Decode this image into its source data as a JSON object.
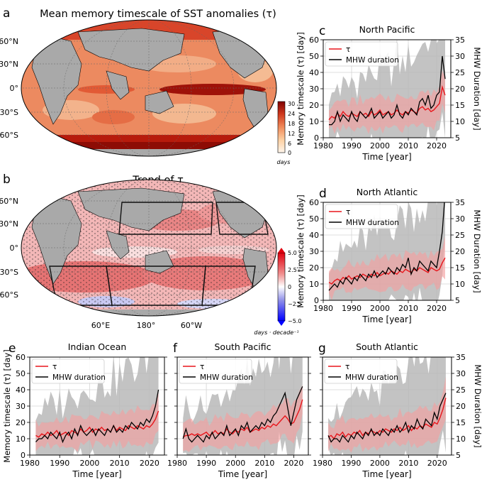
{
  "colors": {
    "tau": "#e8151b",
    "tau_band": "#f2a0a0",
    "mhw": "#000000",
    "mhw_band": "#b8b8b8",
    "land": "#a9a9a9",
    "ocean_warm": "#e8734a",
    "ocean_dark": "#9b1208",
    "ocean_light": "#f6c9a6",
    "trend_pos": "#e25656",
    "trend_light": "#f4c2c2",
    "trend_neg": "#8f8fe8"
  },
  "maps": {
    "a": {
      "letter": "a",
      "title": "Mean memory timescale of SST anomalies (τ)",
      "lat_labels": [
        "60°N",
        "30°N",
        "0°",
        "30°S",
        "60°S"
      ],
      "colorbar": {
        "ticks": [
          "30",
          "24",
          "18",
          "12",
          "6",
          "0"
        ],
        "unit": "days"
      }
    },
    "b": {
      "letter": "b",
      "title": "Trend of τ",
      "lat_labels": [
        "60°N",
        "30°N",
        "0°",
        "30°S",
        "60°S"
      ],
      "lon_labels": [
        "60°E",
        "180°",
        "60°W"
      ],
      "colorbar": {
        "ticks": [
          "5.0",
          "2.5",
          "0",
          "−2.5",
          "−5.0"
        ],
        "unit": "days · decade⁻¹"
      }
    }
  },
  "legend": {
    "tau": "τ",
    "mhw": "MHW duration"
  },
  "chart_data": [
    {
      "id": "c",
      "letter": "c",
      "type": "line",
      "title": "North Pacific",
      "xlabel": "Time [year]",
      "ylabel_left": "Memory timescale (τ) [day]",
      "ylabel_right": "MHW Duration [day]",
      "xlim": [
        1980,
        2025
      ],
      "ylim_left": [
        0,
        60
      ],
      "ylim_right": [
        5,
        35
      ],
      "xticks": [
        1980,
        1990,
        2000,
        2010,
        2020
      ],
      "yticks_left": [
        0,
        10,
        20,
        30,
        40,
        50,
        60
      ],
      "yticks_right": [
        5,
        10,
        15,
        20,
        25,
        30,
        35
      ],
      "x": [
        1982,
        1983,
        1984,
        1985,
        1986,
        1987,
        1988,
        1989,
        1990,
        1991,
        1992,
        1993,
        1994,
        1995,
        1996,
        1997,
        1998,
        1999,
        2000,
        2001,
        2002,
        2003,
        2004,
        2005,
        2006,
        2007,
        2008,
        2009,
        2010,
        2011,
        2012,
        2013,
        2014,
        2015,
        2016,
        2017,
        2018,
        2019,
        2020,
        2021,
        2022,
        2023
      ],
      "series": [
        {
          "name": "τ",
          "axis": "left",
          "values": [
            11,
            13,
            12,
            15,
            13,
            16,
            14,
            13,
            15,
            14,
            13,
            16,
            14,
            15,
            13,
            16,
            14,
            15,
            17,
            14,
            15,
            16,
            14,
            15,
            17,
            15,
            14,
            16,
            15,
            17,
            16,
            15,
            18,
            19,
            17,
            18,
            16,
            17,
            19,
            21,
            31,
            26
          ]
        },
        {
          "name": "MHW duration",
          "axis": "right",
          "values": [
            9,
            9,
            10,
            13,
            10,
            12,
            11,
            10,
            13,
            11,
            10,
            13,
            12,
            11,
            12,
            14,
            11,
            12,
            13,
            11,
            12,
            13,
            11,
            12,
            15,
            12,
            11,
            13,
            12,
            14,
            13,
            12,
            16,
            17,
            15,
            18,
            14,
            15,
            18,
            19,
            30,
            23
          ]
        }
      ]
    },
    {
      "id": "d",
      "letter": "d",
      "type": "line",
      "title": "North Atlantic",
      "xlabel": "Time [year]",
      "ylabel_left": "Memory timescale (τ) [day]",
      "ylabel_right": "MHW Duration [day]",
      "xlim": [
        1980,
        2025
      ],
      "ylim_left": [
        0,
        60
      ],
      "ylim_right": [
        5,
        35
      ],
      "xticks": [
        1980,
        1990,
        2000,
        2010,
        2020
      ],
      "yticks_left": [
        0,
        10,
        20,
        30,
        40,
        50,
        60
      ],
      "yticks_right": [
        5,
        10,
        15,
        20,
        25,
        30,
        35
      ],
      "x": [
        1982,
        1983,
        1984,
        1985,
        1986,
        1987,
        1988,
        1989,
        1990,
        1991,
        1992,
        1993,
        1994,
        1995,
        1996,
        1997,
        1998,
        1999,
        2000,
        2001,
        2002,
        2003,
        2004,
        2005,
        2006,
        2007,
        2008,
        2009,
        2010,
        2011,
        2012,
        2013,
        2014,
        2015,
        2016,
        2017,
        2018,
        2019,
        2020,
        2021,
        2022,
        2023
      ],
      "series": [
        {
          "name": "τ",
          "axis": "left",
          "values": [
            11,
            10,
            12,
            13,
            12,
            14,
            13,
            15,
            13,
            14,
            15,
            14,
            16,
            15,
            14,
            16,
            15,
            17,
            15,
            16,
            17,
            16,
            18,
            17,
            16,
            18,
            17,
            19,
            18,
            17,
            19,
            18,
            20,
            19,
            18,
            17,
            20,
            19,
            18,
            19,
            23,
            26
          ]
        },
        {
          "name": "MHW duration",
          "axis": "right",
          "values": [
            8,
            9,
            10,
            9,
            11,
            10,
            12,
            11,
            10,
            12,
            11,
            13,
            12,
            11,
            13,
            12,
            14,
            12,
            13,
            14,
            13,
            15,
            14,
            13,
            15,
            14,
            16,
            15,
            18,
            13,
            15,
            14,
            17,
            16,
            15,
            14,
            17,
            16,
            15,
            20,
            26,
            38
          ]
        }
      ]
    },
    {
      "id": "e",
      "letter": "e",
      "type": "line",
      "title": "Indian Ocean",
      "xlabel": "Time [year]",
      "ylabel_left": "Memory timescale (τ) [day]",
      "ylabel_right": "",
      "xlim": [
        1980,
        2025
      ],
      "ylim_left": [
        0,
        60
      ],
      "ylim_right": [
        5,
        35
      ],
      "xticks": [
        1980,
        1990,
        2000,
        2010,
        2020
      ],
      "yticks_left": [
        0,
        10,
        20,
        30,
        40,
        50,
        60
      ],
      "yticks_right": [],
      "x": [
        1982,
        1983,
        1984,
        1985,
        1986,
        1987,
        1988,
        1989,
        1990,
        1991,
        1992,
        1993,
        1994,
        1995,
        1996,
        1997,
        1998,
        1999,
        2000,
        2001,
        2002,
        2003,
        2004,
        2005,
        2006,
        2007,
        2008,
        2009,
        2010,
        2011,
        2012,
        2013,
        2014,
        2015,
        2016,
        2017,
        2018,
        2019,
        2020,
        2021,
        2022,
        2023
      ],
      "series": [
        {
          "name": "τ",
          "axis": "left",
          "values": [
            12,
            11,
            13,
            12,
            14,
            12,
            13,
            15,
            12,
            13,
            14,
            12,
            15,
            14,
            13,
            16,
            14,
            15,
            17,
            14,
            16,
            15,
            17,
            15,
            16,
            14,
            18,
            15,
            17,
            16,
            15,
            18,
            17,
            16,
            18,
            17,
            16,
            18,
            17,
            19,
            22,
            27
          ]
        },
        {
          "name": "MHW duration",
          "axis": "right",
          "values": [
            9,
            10,
            10,
            11,
            10,
            12,
            11,
            10,
            12,
            9,
            11,
            12,
            10,
            13,
            11,
            14,
            12,
            11,
            12,
            13,
            11,
            13,
            12,
            11,
            13,
            12,
            14,
            12,
            13,
            12,
            14,
            13,
            15,
            14,
            13,
            15,
            14,
            16,
            15,
            17,
            20,
            25
          ]
        }
      ]
    },
    {
      "id": "f",
      "letter": "f",
      "type": "line",
      "title": "South Pacific",
      "xlabel": "Time [year]",
      "ylabel_left": "",
      "ylabel_right": "",
      "xlim": [
        1980,
        2025
      ],
      "ylim_left": [
        0,
        60
      ],
      "ylim_right": [
        5,
        35
      ],
      "xticks": [
        1980,
        1990,
        2000,
        2010,
        2020
      ],
      "yticks_left": [],
      "yticks_right": [],
      "x": [
        1982,
        1983,
        1984,
        1985,
        1986,
        1987,
        1988,
        1989,
        1990,
        1991,
        1992,
        1993,
        1994,
        1995,
        1996,
        1997,
        1998,
        1999,
        2000,
        2001,
        2002,
        2003,
        2004,
        2005,
        2006,
        2007,
        2008,
        2009,
        2010,
        2011,
        2012,
        2013,
        2014,
        2015,
        2016,
        2017,
        2018,
        2019,
        2020,
        2021,
        2022,
        2023
      ],
      "series": [
        {
          "name": "τ",
          "axis": "left",
          "values": [
            11,
            12,
            12,
            13,
            12,
            13,
            12,
            13,
            14,
            12,
            13,
            15,
            13,
            14,
            13,
            16,
            14,
            13,
            15,
            14,
            16,
            15,
            17,
            14,
            15,
            16,
            15,
            17,
            16,
            18,
            17,
            19,
            18,
            20,
            22,
            24,
            22,
            19,
            20,
            24,
            28,
            34
          ]
        },
        {
          "name": "MHW duration",
          "axis": "right",
          "values": [
            10,
            13,
            10,
            9,
            10,
            11,
            10,
            9,
            11,
            10,
            12,
            10,
            11,
            12,
            11,
            14,
            11,
            12,
            13,
            11,
            14,
            13,
            15,
            12,
            13,
            14,
            13,
            15,
            14,
            16,
            15,
            17,
            18,
            20,
            22,
            24,
            19,
            14,
            18,
            22,
            24,
            26
          ]
        }
      ]
    },
    {
      "id": "g",
      "letter": "g",
      "type": "line",
      "title": "South Atlantic",
      "xlabel": "Time [year]",
      "ylabel_left": "",
      "ylabel_right": "MHW Duration [day]",
      "xlim": [
        1980,
        2025
      ],
      "ylim_left": [
        0,
        60
      ],
      "ylim_right": [
        5,
        35
      ],
      "xticks": [
        1980,
        1990,
        2000,
        2010,
        2020
      ],
      "yticks_left": [],
      "yticks_right": [
        5,
        10,
        15,
        20,
        25,
        30,
        35
      ],
      "x": [
        1982,
        1983,
        1984,
        1985,
        1986,
        1987,
        1988,
        1989,
        1990,
        1991,
        1992,
        1993,
        1994,
        1995,
        1996,
        1997,
        1998,
        1999,
        2000,
        2001,
        2002,
        2003,
        2004,
        2005,
        2006,
        2007,
        2008,
        2009,
        2010,
        2011,
        2012,
        2013,
        2014,
        2015,
        2016,
        2017,
        2018,
        2019,
        2020,
        2021,
        2022,
        2023
      ],
      "series": [
        {
          "name": "τ",
          "axis": "left",
          "values": [
            11,
            12,
            10,
            13,
            12,
            14,
            11,
            13,
            12,
            14,
            13,
            15,
            12,
            14,
            13,
            15,
            14,
            13,
            15,
            14,
            16,
            15,
            14,
            16,
            15,
            17,
            15,
            16,
            18,
            15,
            17,
            16,
            18,
            17,
            19,
            18,
            17,
            20,
            19,
            23,
            28,
            35
          ]
        },
        {
          "name": "MHW duration",
          "axis": "right",
          "values": [
            11,
            9,
            10,
            10,
            9,
            11,
            10,
            9,
            11,
            10,
            12,
            11,
            10,
            12,
            11,
            13,
            11,
            12,
            11,
            13,
            12,
            11,
            13,
            12,
            14,
            12,
            13,
            15,
            12,
            14,
            13,
            16,
            14,
            13,
            16,
            15,
            14,
            18,
            16,
            20,
            22,
            24
          ]
        }
      ]
    }
  ]
}
